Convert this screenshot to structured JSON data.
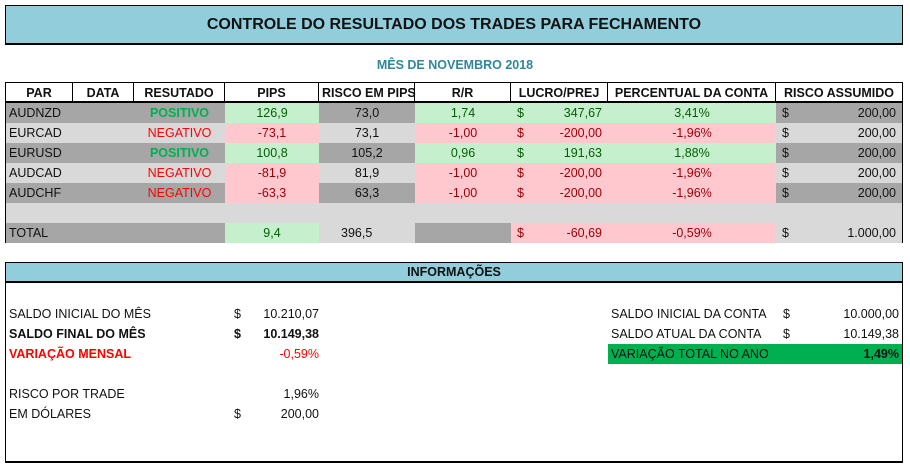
{
  "title": "CONTROLE DO RESULTADO DOS TRADES PARA FECHAMENTO",
  "subtitle": "MÊS DE NOVEMBRO 2018",
  "table": {
    "headers": [
      "PAR",
      "DATA",
      "RESUTADO",
      "PIPS",
      "RISCO EM PIPS",
      "R/R",
      "LUCRO/PREJ",
      "PERCENTUAL DA CONTA",
      "RISCO ASSUMIDO"
    ],
    "currency": "$",
    "rows": [
      {
        "par": "AUDNZD",
        "data": "",
        "resultado": "POSITIVO",
        "pips": "126,9",
        "risco": "73,0",
        "rr": "1,74",
        "lucro": "347,67",
        "percentual": "3,41%",
        "risco_assumido": "200,00"
      },
      {
        "par": "EURCAD",
        "data": "",
        "resultado": "NEGATIVO",
        "pips": "-73,1",
        "risco": "73,1",
        "rr": "-1,00",
        "lucro": "-200,00",
        "percentual": "-1,96%",
        "risco_assumido": "200,00"
      },
      {
        "par": "EURUSD",
        "data": "",
        "resultado": "POSITIVO",
        "pips": "100,8",
        "risco": "105,2",
        "rr": "0,96",
        "lucro": "191,63",
        "percentual": "1,88%",
        "risco_assumido": "200,00"
      },
      {
        "par": "AUDCAD",
        "data": "",
        "resultado": "NEGATIVO",
        "pips": "-81,9",
        "risco": "81,9",
        "rr": "-1,00",
        "lucro": "-200,00",
        "percentual": "-1,96%",
        "risco_assumido": "200,00"
      },
      {
        "par": "AUDCHF",
        "data": "",
        "resultado": "NEGATIVO",
        "pips": "-63,3",
        "risco": "63,3",
        "rr": "-1,00",
        "lucro": "-200,00",
        "percentual": "-1,96%",
        "risco_assumido": "200,00"
      }
    ],
    "total": {
      "label": "TOTAL",
      "pips": "9,4",
      "risco": "396,5",
      "lucro": "-60,69",
      "percentual": "-0,59%",
      "risco_assumido": "1.000,00"
    }
  },
  "info": {
    "header": "INFORMAÇÕES",
    "currency": "$",
    "saldo_inicial_mes": {
      "label": "SALDO INICIAL DO MÊS",
      "value": "10.210,07"
    },
    "saldo_final_mes": {
      "label": "SALDO FINAL DO MÊS",
      "value": "10.149,38"
    },
    "variacao_mensal": {
      "label": "VARIAÇÃO MENSAL",
      "value": "-0,59%"
    },
    "risco_por_trade": {
      "label": "RISCO POR TRADE",
      "value": "1,96%"
    },
    "em_dolares": {
      "label": "EM DÓLARES",
      "value": "200,00"
    },
    "saldo_inicial_conta": {
      "label": "SALDO INICIAL DA CONTA",
      "value": "10.000,00"
    },
    "saldo_atual_conta": {
      "label": "SALDO ATUAL DA CONTA",
      "value": "10.149,38"
    },
    "variacao_total_ano": {
      "label": "VARIAÇÃO TOTAL NO ANO",
      "value": "1,49%"
    }
  },
  "colors": {
    "header_bg": "#92cddc",
    "positive": "#00b050",
    "negative": "#ff0000",
    "green_fill": "#c6efce",
    "red_fill": "#ffc7ce",
    "year_band": "#00b050"
  }
}
